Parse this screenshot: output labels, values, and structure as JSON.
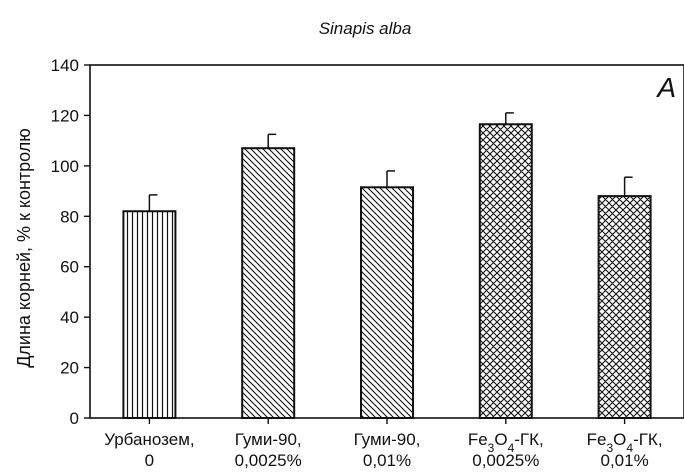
{
  "chart_data": {
    "type": "bar",
    "title": "Sinapis alba",
    "panel_label": "A",
    "ylabel": "Длина корней, % к контролю",
    "xlabel": "",
    "ylim": [
      0,
      140
    ],
    "yticks": [
      0,
      20,
      40,
      60,
      80,
      100,
      120,
      140
    ],
    "grid": false,
    "categories": [
      [
        "Урбанозем,",
        "0"
      ],
      [
        "Гуми-90,",
        "0,0025%"
      ],
      [
        "Гуми-90,",
        "0,01%"
      ],
      [
        "Fe3O4-ГК,",
        "0,0025%"
      ],
      [
        "Fe3O4-ГК,",
        "0,01%"
      ]
    ],
    "values": [
      82,
      107,
      91.5,
      116.5,
      88
    ],
    "errors": [
      6.5,
      5.5,
      6.5,
      4.5,
      7.5
    ],
    "patterns": [
      "vertical",
      "diagonal",
      "diagonal",
      "crosshatch",
      "crosshatch"
    ]
  }
}
